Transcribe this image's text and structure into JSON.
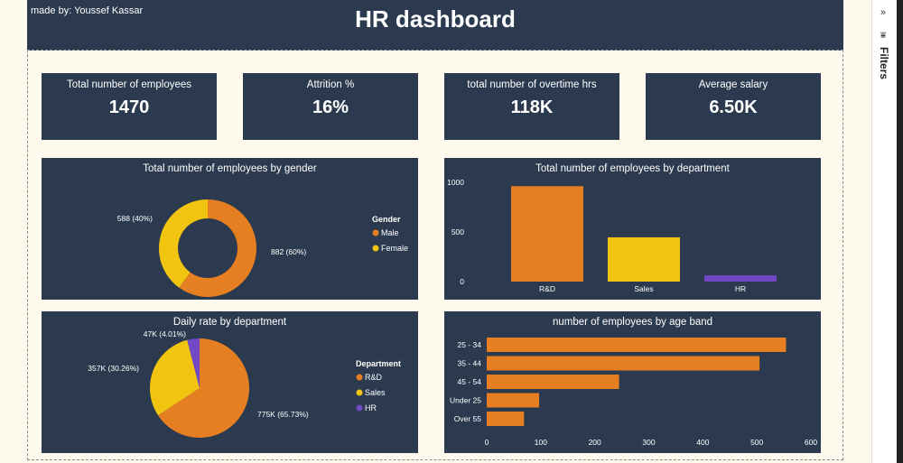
{
  "header": {
    "made_by": "made by: Youssef Kassar",
    "title": "HR dashboard"
  },
  "kpis": [
    {
      "label": "Total number of employees",
      "value": "1470"
    },
    {
      "label": "Attrition %",
      "value": "16%"
    },
    {
      "label": "total number of overtime hrs",
      "value": "118K"
    },
    {
      "label": "Average salary",
      "value": "6.50K"
    }
  ],
  "filters_pane": {
    "label": "Filters",
    "collapse_icon": "double-chevron-right-icon",
    "filter_icon": "filter-icon"
  },
  "chart_data": [
    {
      "type": "pie",
      "variant": "donut",
      "title": "Total number of employees by gender",
      "legend_title": "Gender",
      "legend_position": "right",
      "categories": [
        "Male",
        "Female"
      ],
      "values": [
        882,
        588
      ],
      "labels": [
        "882 (60%)",
        "588 (40%)"
      ],
      "colors": [
        "#e67e22",
        "#f1c40f"
      ]
    },
    {
      "type": "bar",
      "title": "Total number of employees by department",
      "categories": [
        "R&D",
        "Sales",
        "HR"
      ],
      "values": [
        961,
        446,
        63
      ],
      "colors": [
        "#e67e22",
        "#f1c40f",
        "#7048c8"
      ],
      "yticks": [
        "0",
        "500",
        "1000"
      ],
      "ylim": [
        0,
        1000
      ]
    },
    {
      "type": "pie",
      "title": "Daily rate by department",
      "legend_title": "Department",
      "legend_position": "right",
      "categories": [
        "R&D",
        "Sales",
        "HR"
      ],
      "values": [
        65.73,
        30.26,
        4.01
      ],
      "labels": [
        "775K (65.73%)",
        "357K (30.26%)",
        "47K (4.01%)"
      ],
      "colors": [
        "#e67e22",
        "#f1c40f",
        "#7048c8"
      ]
    },
    {
      "type": "bar",
      "orientation": "horizontal",
      "title": "number of employees by age band",
      "categories": [
        "25 - 34",
        "35 - 44",
        "45 - 54",
        "Under 25",
        "Over 55"
      ],
      "values": [
        554,
        505,
        245,
        97,
        69
      ],
      "color": "#e67e22",
      "xticks": [
        "0",
        "100",
        "200",
        "300",
        "400",
        "500",
        "600"
      ],
      "xlim": [
        0,
        600
      ]
    }
  ]
}
